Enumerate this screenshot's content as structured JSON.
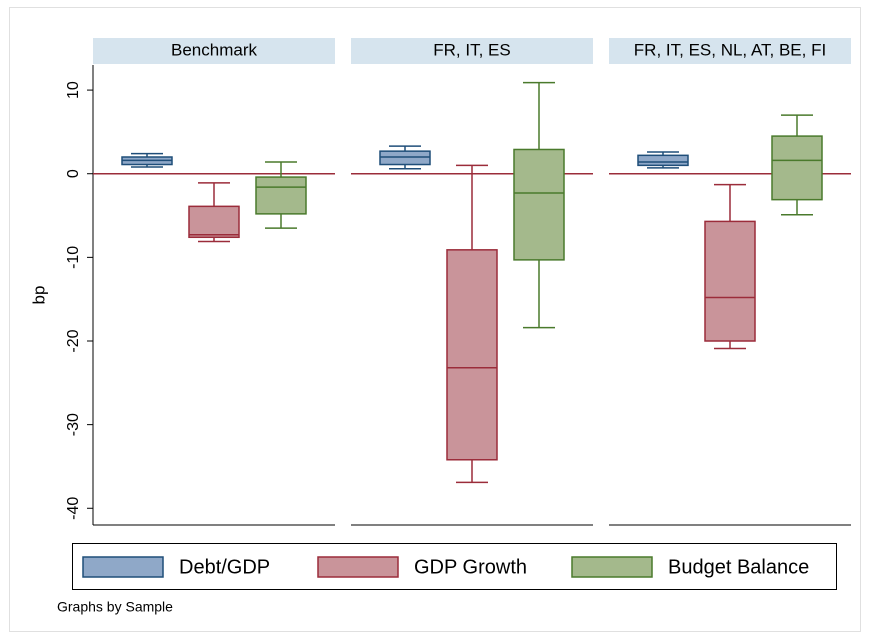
{
  "chart_data": {
    "type": "box",
    "ylabel": "bp",
    "ylim": [
      -42,
      13
    ],
    "yticks": [
      10,
      0,
      -10,
      -20,
      -30,
      -40
    ],
    "reference_line": 0,
    "series": [
      {
        "name": "Debt/GDP",
        "color": "#8fa8c8",
        "stroke": "#1f4e79"
      },
      {
        "name": "GDP Growth",
        "color": "#c9949a",
        "stroke": "#9b2c3a"
      },
      {
        "name": "Budget Balance",
        "color": "#a4b98c",
        "stroke": "#4a7a2c"
      }
    ],
    "panels": [
      {
        "title": "Benchmark",
        "boxes": [
          {
            "min": 0.8,
            "q1": 1.1,
            "median": 1.6,
            "q3": 2.0,
            "max": 2.4
          },
          {
            "min": -8.1,
            "q1": -7.6,
            "median": -7.3,
            "q3": -3.9,
            "max": -1.1
          },
          {
            "min": -6.5,
            "q1": -4.8,
            "median": -1.6,
            "q3": -0.4,
            "max": 1.4
          }
        ]
      },
      {
        "title": "FR, IT, ES",
        "boxes": [
          {
            "min": 0.6,
            "q1": 1.1,
            "median": 2.0,
            "q3": 2.7,
            "max": 3.3
          },
          {
            "min": -36.9,
            "q1": -34.2,
            "median": -23.2,
            "q3": -9.1,
            "max": 1.0
          },
          {
            "min": -18.4,
            "q1": -10.3,
            "median": -2.3,
            "q3": 2.9,
            "max": 10.9
          }
        ]
      },
      {
        "title": "FR, IT, ES, NL, AT, BE, FI",
        "boxes": [
          {
            "min": 0.7,
            "q1": 1.0,
            "median": 1.4,
            "q3": 2.2,
            "max": 2.6
          },
          {
            "min": -20.9,
            "q1": -20.0,
            "median": -14.8,
            "q3": -5.7,
            "max": -1.3
          },
          {
            "min": -4.9,
            "q1": -3.1,
            "median": 1.6,
            "q3": 4.5,
            "max": 7.0
          }
        ]
      }
    ],
    "note": "Graphs by Sample"
  }
}
